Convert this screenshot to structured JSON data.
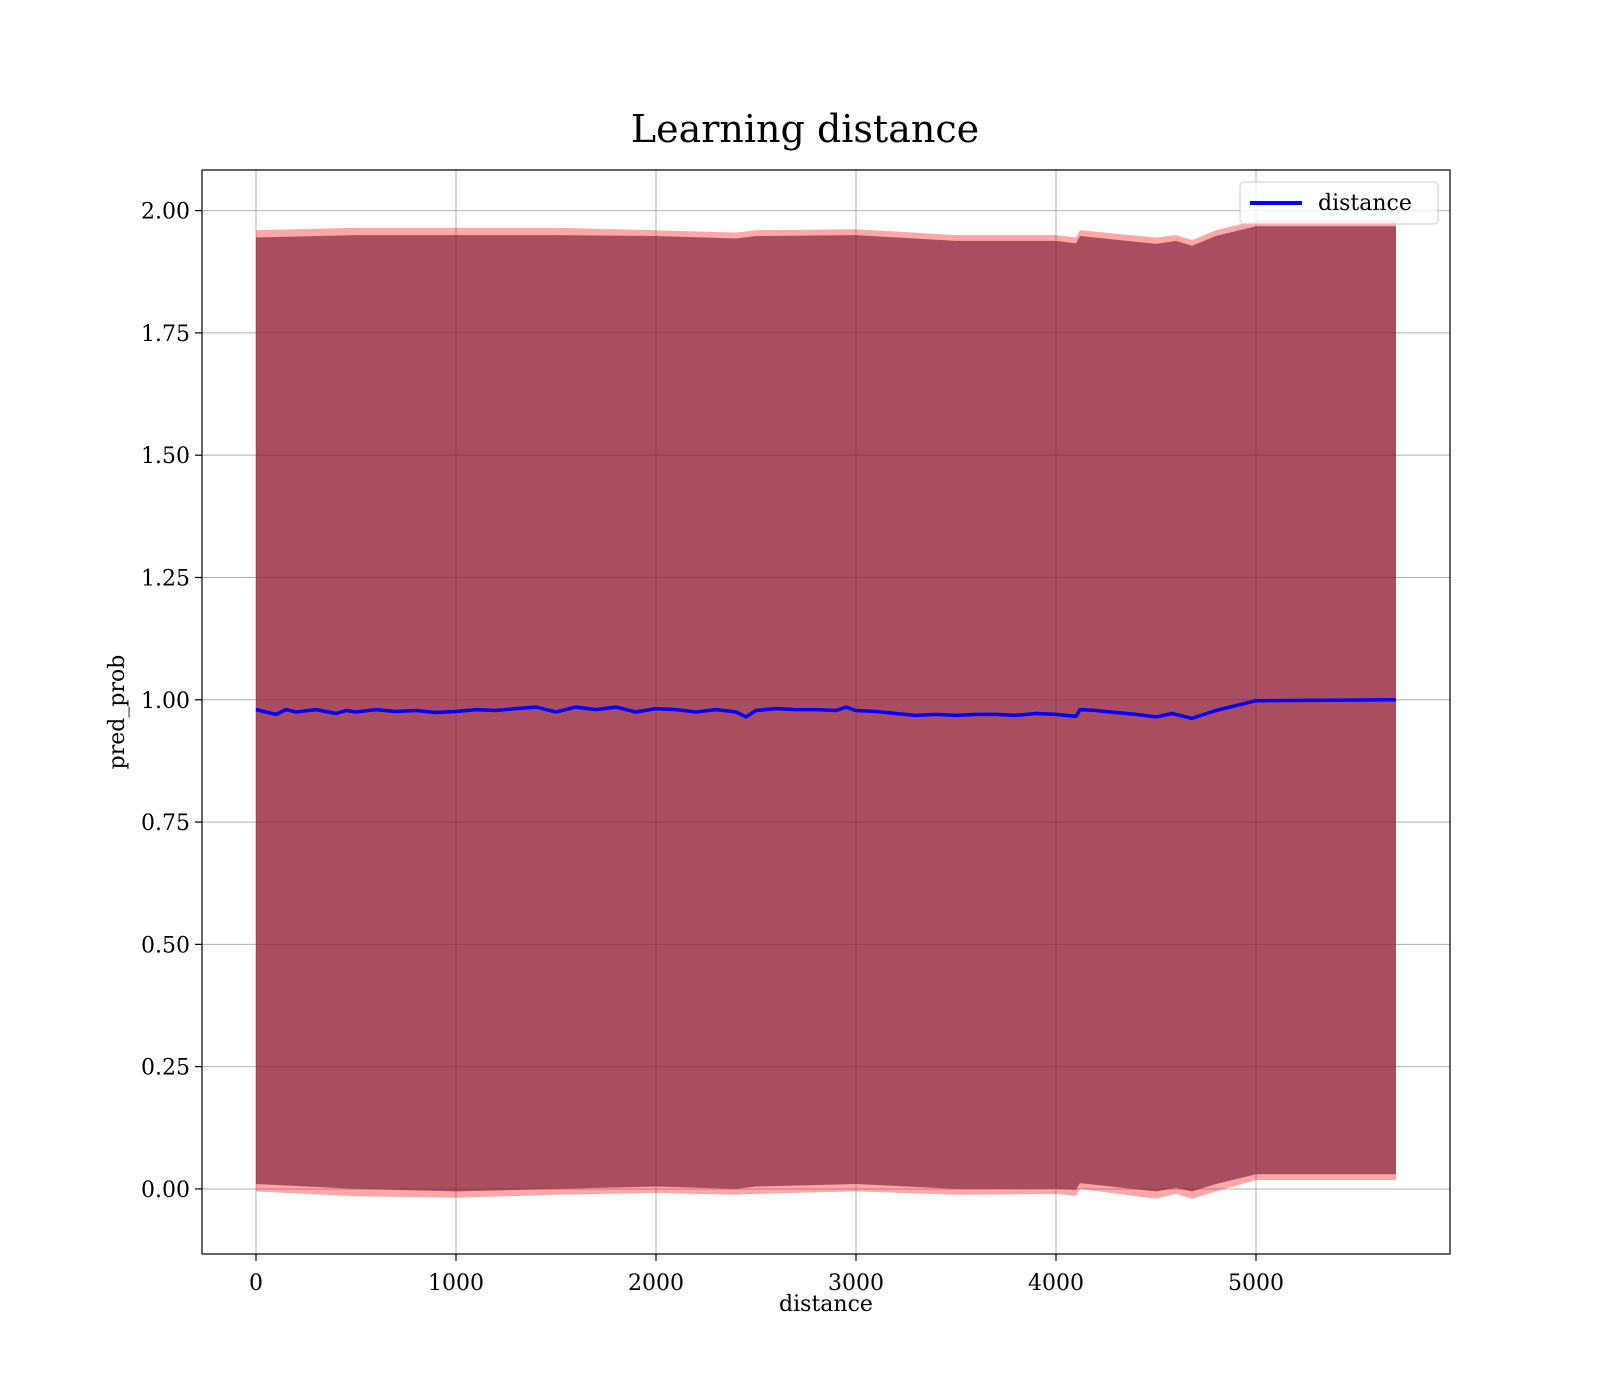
{
  "chart_data": {
    "type": "line",
    "title": "Learning distance",
    "xlabel": "distance",
    "ylabel": "pred_prob",
    "xlim": [
      -270,
      5970
    ],
    "ylim": [
      -0.133,
      2.083
    ],
    "xticks": [
      0,
      1000,
      2000,
      3000,
      4000,
      5000
    ],
    "xtick_labels": [
      "0",
      "1000",
      "2000",
      "3000",
      "4000",
      "5000"
    ],
    "yticks": [
      0.0,
      0.25,
      0.5,
      0.75,
      1.0,
      1.25,
      1.5,
      1.75,
      2.0
    ],
    "ytick_labels": [
      "0.00",
      "0.25",
      "0.50",
      "0.75",
      "1.00",
      "1.25",
      "1.50",
      "1.75",
      "2.00"
    ],
    "grid": true,
    "legend_position": "upper right",
    "series": [
      {
        "name": "distance",
        "color": "#0000ff",
        "x": [
          0,
          50,
          100,
          150,
          200,
          300,
          400,
          450,
          500,
          600,
          700,
          800,
          900,
          1000,
          1100,
          1200,
          1300,
          1400,
          1500,
          1600,
          1700,
          1800,
          1900,
          2000,
          2100,
          2200,
          2300,
          2400,
          2450,
          2500,
          2600,
          2700,
          2800,
          2900,
          2950,
          3000,
          3100,
          3200,
          3300,
          3400,
          3500,
          3600,
          3700,
          3800,
          3900,
          4000,
          4100,
          4120,
          4200,
          4300,
          4400,
          4500,
          4580,
          4680,
          4800,
          4900,
          5000,
          5700
        ],
        "y": [
          0.98,
          0.975,
          0.97,
          0.98,
          0.975,
          0.98,
          0.972,
          0.978,
          0.975,
          0.98,
          0.976,
          0.978,
          0.974,
          0.976,
          0.98,
          0.978,
          0.982,
          0.985,
          0.975,
          0.985,
          0.98,
          0.985,
          0.975,
          0.982,
          0.98,
          0.975,
          0.98,
          0.975,
          0.965,
          0.978,
          0.982,
          0.98,
          0.98,
          0.978,
          0.985,
          0.978,
          0.976,
          0.972,
          0.968,
          0.97,
          0.968,
          0.97,
          0.97,
          0.968,
          0.972,
          0.97,
          0.966,
          0.98,
          0.978,
          0.974,
          0.97,
          0.965,
          0.972,
          0.962,
          0.978,
          0.988,
          0.998,
          1.0
        ]
      }
    ],
    "bands": [
      {
        "label": "",
        "color": "#ff0000",
        "opacity": 0.35,
        "x": [
          0,
          500,
          1000,
          1500,
          2000,
          2400,
          2500,
          3000,
          3500,
          4000,
          4100,
          4120,
          4500,
          4600,
          4680,
          4800,
          5000,
          5700
        ],
        "lower": [
          -0.005,
          -0.015,
          -0.018,
          -0.012,
          -0.008,
          -0.012,
          -0.01,
          -0.005,
          -0.012,
          -0.01,
          -0.014,
          0.0,
          -0.02,
          -0.01,
          -0.02,
          -0.005,
          0.018,
          0.018
        ],
        "upper": [
          1.96,
          1.965,
          1.965,
          1.965,
          1.96,
          1.955,
          1.96,
          1.962,
          1.95,
          1.95,
          1.945,
          1.96,
          1.945,
          1.95,
          1.94,
          1.96,
          1.98,
          1.98
        ]
      },
      {
        "label": "",
        "color": "#7a1f3a",
        "opacity": 0.65,
        "x": [
          0,
          500,
          1000,
          1500,
          2000,
          2400,
          2500,
          3000,
          3500,
          4000,
          4100,
          4120,
          4500,
          4600,
          4680,
          4800,
          5000,
          5700
        ],
        "lower": [
          0.01,
          0.0,
          -0.005,
          0.0,
          0.005,
          0.0,
          0.005,
          0.01,
          0.0,
          0.0,
          -0.002,
          0.012,
          -0.005,
          0.002,
          -0.005,
          0.01,
          0.03,
          0.03
        ],
        "upper": [
          1.945,
          1.95,
          1.95,
          1.95,
          1.948,
          1.943,
          1.948,
          1.95,
          1.938,
          1.938,
          1.933,
          1.948,
          1.932,
          1.938,
          1.928,
          1.948,
          1.968,
          1.968
        ]
      }
    ]
  }
}
